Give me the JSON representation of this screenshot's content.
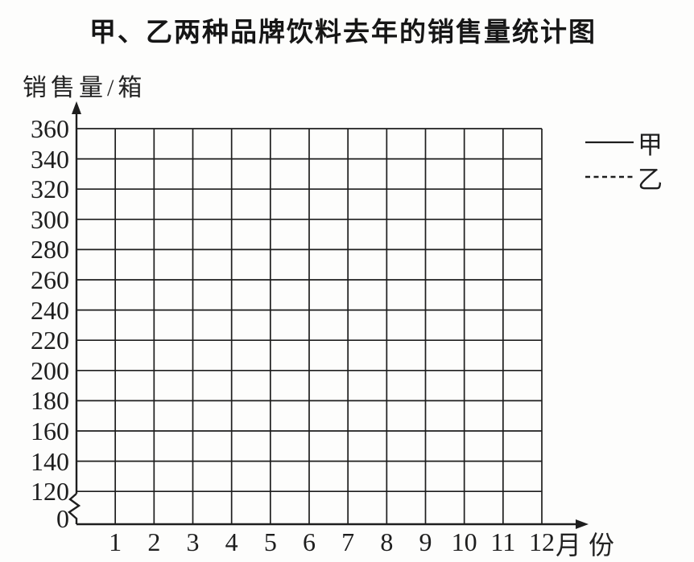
{
  "title": "甲、乙两种品牌饮料去年的销售量统计图",
  "y_axis": {
    "label": "销售量/箱",
    "ticks": [
      "360",
      "340",
      "320",
      "300",
      "280",
      "260",
      "240",
      "220",
      "200",
      "180",
      "160",
      "140",
      "120"
    ],
    "origin": "0",
    "has_break_between_origin_and_120": true
  },
  "x_axis": {
    "label": "月份",
    "ticks": [
      "1",
      "2",
      "3",
      "4",
      "5",
      "6",
      "7",
      "8",
      "9",
      "10",
      "11",
      "12"
    ]
  },
  "legend": {
    "items": [
      {
        "label": "甲",
        "line_style": "solid"
      },
      {
        "label": "乙",
        "line_style": "dashed"
      }
    ]
  },
  "chart_data": {
    "type": "line",
    "title": "甲、乙两种品牌饮料去年的销售量统计图",
    "xlabel": "月份",
    "ylabel": "销售量/箱",
    "categories": [
      1,
      2,
      3,
      4,
      5,
      6,
      7,
      8,
      9,
      10,
      11,
      12
    ],
    "series": [
      {
        "name": "甲",
        "line_style": "solid",
        "values": []
      },
      {
        "name": "乙",
        "line_style": "dashed",
        "values": []
      }
    ],
    "ylim": [
      0,
      360
    ],
    "y_ticks": [
      0,
      120,
      140,
      160,
      180,
      200,
      220,
      240,
      260,
      280,
      300,
      320,
      340,
      360
    ],
    "y_axis_break_between": [
      0,
      120
    ],
    "grid": true,
    "legend_position": "right",
    "plotted_points": "none — empty grid for students to fill in"
  },
  "colors": {
    "ink": "#1e1e1e",
    "background": "#fdfdfc"
  }
}
